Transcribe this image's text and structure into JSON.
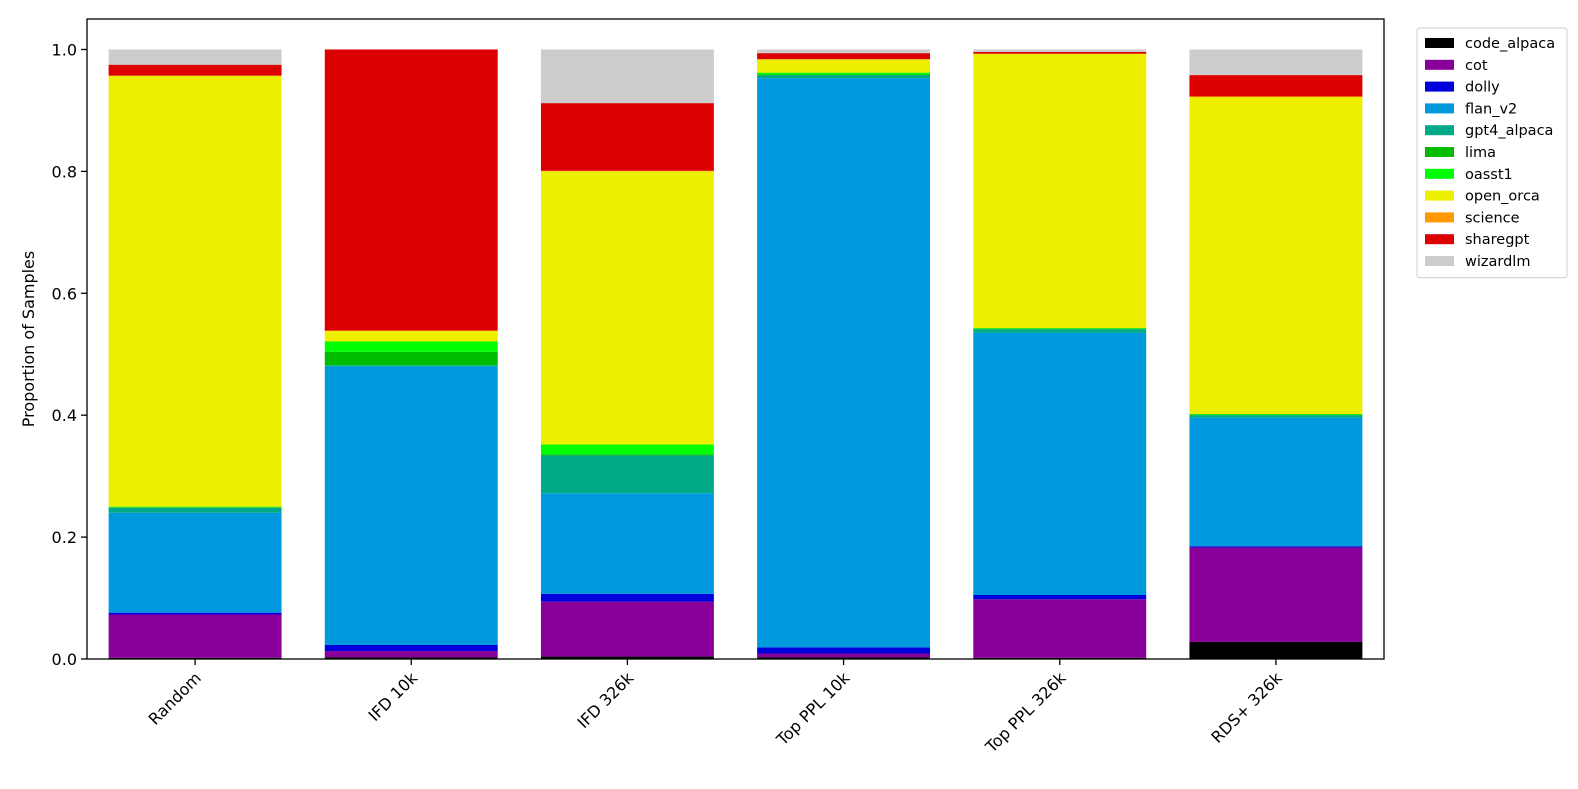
{
  "chart_data": {
    "type": "bar",
    "stacked": true,
    "categories": [
      "Random",
      "IFD 10k",
      "IFD 326k",
      "Top PPL 10k",
      "Top PPL 326k",
      "RDS+ 326k"
    ],
    "ylabel": "Proportion of Samples",
    "xlabel": "",
    "ylim": [
      0,
      1.05
    ],
    "yticks": [
      "0.0",
      "0.2",
      "0.4",
      "0.6",
      "0.8",
      "1.0"
    ],
    "ytick_values": [
      0,
      0.2,
      0.4,
      0.6,
      0.8,
      1.0
    ],
    "grid": false,
    "legend_position": "outside-top-right",
    "series": [
      {
        "name": "code_alpaca",
        "color": "#000000",
        "values": [
          0.002,
          0.003,
          0.004,
          0.003,
          0.002,
          0.028
        ]
      },
      {
        "name": "cot",
        "color": "#880099",
        "values": [
          0.071,
          0.01,
          0.09,
          0.006,
          0.096,
          0.155
        ]
      },
      {
        "name": "dolly",
        "color": "#0000dd",
        "values": [
          0.003,
          0.01,
          0.013,
          0.01,
          0.007,
          0.002
        ]
      },
      {
        "name": "flan_v2",
        "color": "#0099dd",
        "values": [
          0.164,
          0.457,
          0.165,
          0.934,
          0.43,
          0.211
        ]
      },
      {
        "name": "gpt4_alpaca",
        "color": "#00aa88",
        "values": [
          0.008,
          0.002,
          0.062,
          0.005,
          0.006,
          0.004
        ]
      },
      {
        "name": "lima",
        "color": "#00bb00",
        "values": [
          0.001,
          0.022,
          0.002,
          0.001,
          0.001,
          0.001
        ]
      },
      {
        "name": "oasst1",
        "color": "#00ff00",
        "values": [
          0.001,
          0.017,
          0.016,
          0.003,
          0.001,
          0.001
        ]
      },
      {
        "name": "open_orca",
        "color": "#eeee00",
        "values": [
          0.707,
          0.017,
          0.448,
          0.022,
          0.45,
          0.52
        ]
      },
      {
        "name": "science",
        "color": "#ff9900",
        "values": [
          0.0,
          0.001,
          0.001,
          0.0,
          0.0,
          0.001
        ]
      },
      {
        "name": "sharegpt",
        "color": "#dd0000",
        "values": [
          0.018,
          0.461,
          0.111,
          0.01,
          0.003,
          0.035
        ]
      },
      {
        "name": "wizardlm",
        "color": "#cccccc",
        "values": [
          0.025,
          0.0,
          0.088,
          0.006,
          0.004,
          0.042
        ]
      }
    ]
  }
}
